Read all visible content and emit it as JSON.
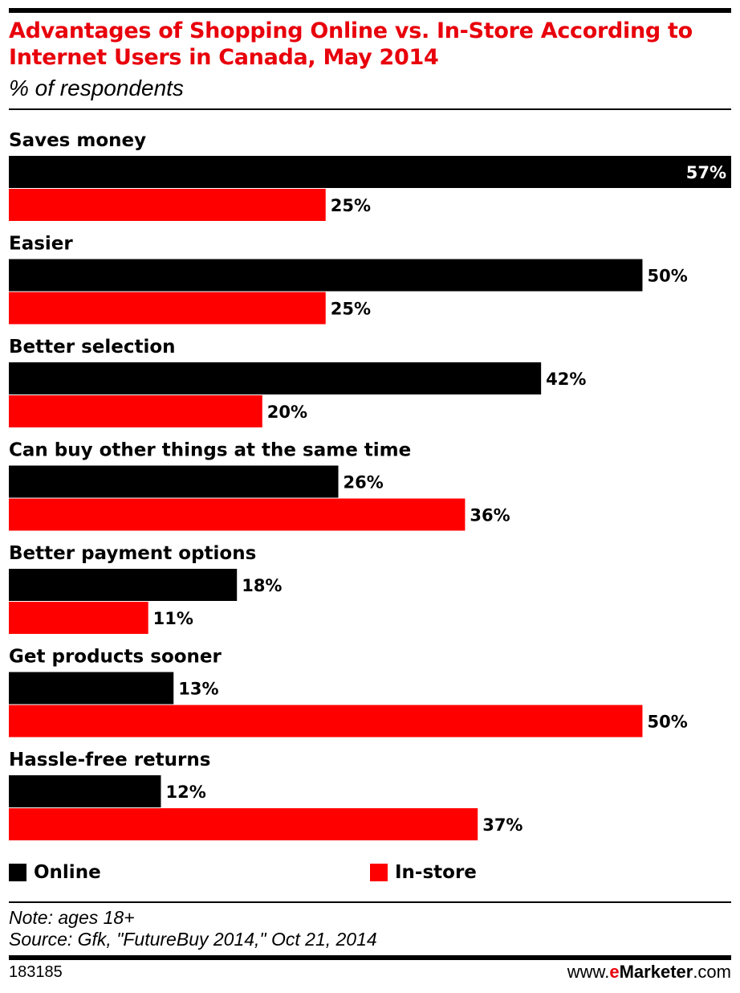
{
  "header": {
    "title": "Advantages of Shopping Online vs. In-Store According to Internet Users in Canada, May 2014",
    "subtitle": "% of respondents"
  },
  "legend": {
    "online_label": "Online",
    "instore_label": "In-store"
  },
  "footer": {
    "note": "Note: ages 18+",
    "source": "Source: Gfk, \"FutureBuy 2014,\" Oct 21, 2014",
    "chart_id": "183185",
    "site_prefix": "www.",
    "site_brand_e": "e",
    "site_brand_rest": "Marketer",
    "site_suffix": ".com"
  },
  "colors": {
    "online": "#000000",
    "instore": "#ff0000",
    "title": "#e8000b"
  },
  "chart_data": {
    "type": "bar",
    "orientation": "horizontal",
    "title": "Advantages of Shopping Online vs. In-Store According to Internet Users in Canada, May 2014",
    "subtitle": "% of respondents",
    "categories": [
      "Saves money",
      "Easier",
      "Better selection",
      "Can buy other things at the same time",
      "Better payment options",
      "Get products sooner",
      "Hassle-free returns"
    ],
    "series": [
      {
        "name": "Online",
        "values": [
          57,
          50,
          42,
          26,
          18,
          13,
          12
        ]
      },
      {
        "name": "In-store",
        "values": [
          25,
          25,
          20,
          36,
          11,
          50,
          37
        ]
      }
    ],
    "value_suffix": "%",
    "xlim": [
      0,
      57
    ],
    "grid": false,
    "legend_position": "bottom"
  }
}
